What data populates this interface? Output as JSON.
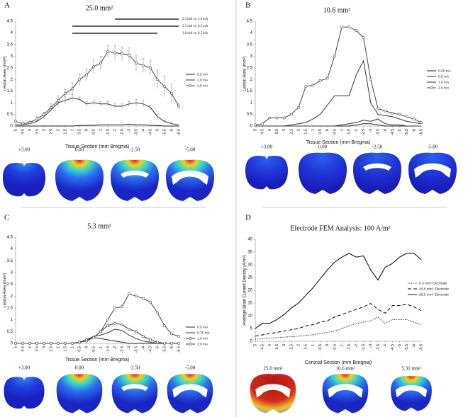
{
  "chart_data": [
    {
      "panel": "A",
      "type": "line",
      "title": "25.0 mm²",
      "xlabel": "Tissue Section (mm Bregma)",
      "ylabel": "Lesion Area (mm²)",
      "x": [
        5,
        4.5,
        4,
        3.5,
        3,
        2.5,
        2,
        1.5,
        1,
        0.5,
        0,
        -0.5,
        -1,
        -1.5,
        -2,
        -2.5,
        -3,
        -3.5,
        -4,
        -4.5,
        -5,
        -5.5,
        -6,
        -6.5
      ],
      "xlim": [
        5,
        -6.5
      ],
      "xticks": [
        5,
        4.5,
        4,
        3.5,
        3,
        2.5,
        2,
        1.5,
        1,
        0.5,
        0,
        -0.5,
        -1,
        -1.5,
        -2,
        -2.5,
        -3,
        -3.5,
        -4,
        -4.5,
        -5,
        -5.5,
        -6,
        -6.5
      ],
      "ylim": [
        0,
        4.5
      ],
      "yticks": [
        0,
        0.5,
        1,
        1.5,
        2,
        2.5,
        3,
        3.5,
        4,
        4.5
      ],
      "series": [
        {
          "name": "0.5 mA",
          "color": "#222222",
          "line_style": "solid",
          "marker": "none",
          "values": [
            0,
            0,
            0,
            0,
            0,
            0,
            0,
            0,
            0,
            0.02,
            0.03,
            0.03,
            0.05,
            0.05,
            0.05,
            0.05,
            0.08,
            0.05,
            0.05,
            0.03,
            0.02,
            0,
            0,
            0
          ]
        },
        {
          "name": "1.0 mA",
          "color": "#333333",
          "line_style": "solid",
          "marker": "none",
          "values": [
            0.05,
            0.05,
            0.1,
            0.2,
            0.4,
            0.7,
            1.0,
            1.1,
            1.2,
            1.15,
            0.95,
            1.0,
            0.95,
            0.95,
            0.85,
            0.85,
            0.95,
            1.0,
            0.95,
            0.8,
            0.4,
            0.2,
            0.1,
            0.05
          ],
          "errors": [
            0,
            0,
            0.05,
            0.05,
            0.1,
            0.1,
            0.15,
            0.15,
            0.15,
            0.1,
            0.1,
            0.1,
            0.1,
            0.1,
            0.1,
            0.1,
            0.1,
            0.15,
            0.15,
            0.1,
            0.1,
            0.05,
            0.05,
            0
          ]
        },
        {
          "name": "2.5 mA",
          "color": "#444444",
          "line_style": "solid",
          "marker": "circle",
          "values": [
            0.2,
            0.1,
            0.15,
            0.3,
            0.5,
            0.8,
            1.1,
            1.4,
            1.6,
            2.0,
            2.2,
            2.55,
            2.7,
            3.2,
            3.15,
            3.1,
            3.05,
            2.7,
            2.6,
            2.5,
            2.0,
            1.7,
            1.4,
            0.85
          ],
          "errors": [
            0.05,
            0.05,
            0.05,
            0.1,
            0.1,
            0.15,
            0.2,
            0.2,
            0.25,
            0.25,
            0.25,
            0.3,
            0.3,
            0.25,
            0.3,
            0.3,
            0.3,
            0.35,
            0.3,
            0.3,
            0.4,
            0.45,
            0.4,
            0.1
          ]
        }
      ],
      "annotations": [
        {
          "label": "2.5 mA vs. 1.0 mA",
          "x": [
            -2,
            -6.5
          ]
        },
        {
          "label": "2.5 mA vs. 0.5 mA",
          "x": [
            1,
            -6.5
          ]
        },
        {
          "label": "1.0 mA vs. 0.5 mA",
          "x": [
            1,
            -5
          ]
        }
      ],
      "image_labels": [
        "+3.00",
        "0.00",
        "-2.50",
        "-5.00"
      ]
    },
    {
      "panel": "B",
      "type": "line",
      "title": "10.6 mm²",
      "xlabel": "Tissue Section (mm Bregma)",
      "ylabel": "Lesion Area (mm²)",
      "x": [
        5,
        4.5,
        4,
        3.5,
        3,
        2.5,
        2,
        1.5,
        1,
        0.5,
        0,
        -0.5,
        -1,
        -1.5,
        -2,
        -2.5,
        -3,
        -3.5,
        -4,
        -4.5,
        -5,
        -5.5,
        -6,
        -6.5
      ],
      "xlim": [
        5,
        -6.5
      ],
      "xticks": [
        5,
        4.5,
        4,
        3.5,
        3,
        2.5,
        2,
        1.5,
        1,
        0.5,
        0,
        -0.5,
        -1,
        -1.5,
        -2,
        -2.5,
        -3,
        -3.5,
        -4,
        -4.5,
        -5,
        -5.5,
        -6,
        -6.5
      ],
      "ylim": [
        0,
        4.5
      ],
      "yticks": [
        0,
        0.5,
        1,
        1.5,
        2,
        2.5,
        3,
        3.5,
        4,
        4.5
      ],
      "series": [
        {
          "name": "0.25 mA",
          "color": "#222222",
          "line_style": "solid",
          "marker": "none",
          "values": [
            0,
            0,
            0,
            0,
            0,
            0,
            0,
            0,
            0,
            0,
            0,
            0,
            0,
            0,
            0.05,
            0.1,
            0.1,
            0.05,
            0,
            0,
            0,
            0,
            0,
            0
          ]
        },
        {
          "name": "0.5 mA",
          "color": "#333333",
          "line_style": "solid",
          "marker": "none",
          "values": [
            0,
            0,
            0,
            0,
            0,
            0,
            0,
            0,
            0,
            0,
            0,
            0,
            0.05,
            0.1,
            0.15,
            0.25,
            0.2,
            0.3,
            0.1,
            0.05,
            0.05,
            0,
            0,
            0
          ]
        },
        {
          "name": "1.0 mA",
          "color": "#333333",
          "line_style": "solid",
          "marker": "none",
          "values": [
            0,
            0,
            0,
            0,
            0,
            0.05,
            0.1,
            0.15,
            0.3,
            0.5,
            0.9,
            1.3,
            1.3,
            1.3,
            2.2,
            2.8,
            1.0,
            0.5,
            0.45,
            0.4,
            0.3,
            0.2,
            0.15,
            0.1
          ]
        },
        {
          "name": "2.0 mA",
          "color": "#444444",
          "line_style": "solid",
          "marker": "circle",
          "values": [
            0.05,
            0.1,
            0.35,
            0.35,
            0.35,
            0.5,
            0.8,
            1.7,
            1.75,
            1.95,
            2.05,
            3.0,
            4.25,
            4.25,
            4.1,
            3.8,
            2.0,
            0.75,
            0.65,
            0.55,
            0.5,
            0.4,
            0.3,
            0.15
          ]
        }
      ],
      "image_labels": [
        "+3.00",
        "0.00",
        "-2.50",
        "-5.00"
      ]
    },
    {
      "panel": "C",
      "type": "line",
      "title": "5.3 mm²",
      "xlabel": "Tissue Section (mm Bregma)",
      "ylabel": "Lesion Area (mm²)",
      "x": [
        5,
        4.5,
        4,
        3.5,
        3,
        2.5,
        2,
        1.5,
        1,
        0.5,
        0,
        -0.5,
        -1,
        -1.5,
        -2,
        -2.5,
        -3,
        -3.5,
        -4,
        -4.5,
        -5,
        -5.5,
        -6,
        -6.5
      ],
      "xlim": [
        5,
        -6.5
      ],
      "xticks": [
        5,
        4.5,
        4,
        3.5,
        3,
        2.5,
        2,
        1.5,
        1,
        0.5,
        0,
        -0.5,
        -1,
        -1.5,
        -2,
        -2.5,
        -3,
        -3.5,
        -4,
        -4.5,
        -5,
        -5.5,
        -6,
        -6.5
      ],
      "ylim": [
        0,
        4.5
      ],
      "yticks": [
        0,
        0.5,
        1,
        1.5,
        2,
        2.5,
        3,
        3.5,
        4,
        4.5
      ],
      "series": [
        {
          "name": "0.5 mA",
          "color": "#222222",
          "line_style": "solid",
          "marker": "none",
          "values": [
            0,
            0,
            0,
            0,
            0,
            0,
            0,
            0,
            0,
            0.05,
            0.15,
            0.25,
            0.2,
            0.15,
            0.1,
            0.05,
            0,
            0,
            0,
            0,
            0,
            0,
            0,
            0
          ]
        },
        {
          "name": "0.75 mA",
          "color": "#333333",
          "line_style": "solid",
          "marker": "none",
          "values": [
            0,
            0,
            0,
            0,
            0,
            0,
            0,
            0,
            0,
            0.05,
            0.15,
            0.3,
            0.35,
            0.45,
            0.6,
            0.55,
            0.35,
            0.2,
            0.1,
            0.05,
            0,
            0,
            0,
            0
          ]
        },
        {
          "name": "1.0 mA",
          "color": "#333333",
          "line_style": "solid",
          "marker": "circle",
          "values": [
            0,
            0,
            0,
            0,
            0,
            0,
            0,
            0,
            0,
            0.05,
            0.1,
            0.25,
            0.5,
            0.75,
            0.85,
            0.8,
            0.6,
            0.5,
            0.3,
            0.15,
            0.05,
            0,
            0,
            0
          ]
        },
        {
          "name": "2.0 mA",
          "color": "#444444",
          "line_style": "solid",
          "marker": "circle",
          "values": [
            0,
            0,
            0,
            0,
            0,
            0,
            0,
            0,
            0,
            0.05,
            0.15,
            0.25,
            0.5,
            1.0,
            1.5,
            1.55,
            2.1,
            2.0,
            1.9,
            1.75,
            1.3,
            0.75,
            0.4,
            0.3
          ]
        }
      ],
      "image_labels": [
        "+3.00",
        "0.00",
        "-2.50",
        "-5.00"
      ]
    },
    {
      "panel": "D",
      "type": "line",
      "title": "Electrode FEM Analysis: 100 A/m²",
      "xlabel": "Coronal Section (mm Bregma)",
      "ylabel": "Average Brain Current Density (A/m²)",
      "x": [
        5,
        4.5,
        4,
        3.5,
        3,
        2.5,
        2,
        1.5,
        1,
        0.5,
        0,
        -0.5,
        -1,
        -1.5,
        -2,
        -2.5,
        -3,
        -3.5,
        -4,
        -4.5,
        -5,
        -5.5,
        -6,
        -6.5
      ],
      "xlim": [
        5,
        -6.5
      ],
      "xticks": [
        5,
        4.5,
        4,
        3.5,
        3,
        2.5,
        2,
        1.5,
        1,
        0.5,
        0,
        -0.5,
        -1,
        -1.5,
        -2,
        -2.5,
        -3,
        -3.5,
        -4,
        -4.5,
        -5,
        -5.5,
        -6,
        -6.5
      ],
      "ylim": [
        0,
        40
      ],
      "yticks": [
        0,
        5,
        10,
        15,
        20,
        25,
        30,
        35,
        40
      ],
      "series": [
        {
          "name": "5.3 mm² Electrode",
          "color": "#000000",
          "line_style": "dotted",
          "marker": "none",
          "values": [
            0.8,
            1,
            1.2,
            1.4,
            1.6,
            1.8,
            2,
            2.3,
            2.5,
            3,
            3.5,
            4,
            5,
            6,
            7,
            7.5,
            8,
            9.5,
            7,
            8.5,
            8.5,
            8.5,
            7.5,
            6.5
          ]
        },
        {
          "name": "10.6 mm² Electrode",
          "color": "#000000",
          "line_style": "dashed",
          "marker": "none",
          "values": [
            2,
            2.5,
            3,
            3.5,
            4,
            4.5,
            5,
            6,
            6.5,
            7.5,
            8,
            9.5,
            10.5,
            11.5,
            12.5,
            13.5,
            14.8,
            12.5,
            11,
            14,
            14,
            14.5,
            13.5,
            12
          ]
        },
        {
          "name": "25.0 mm² Electrode",
          "color": "#000000",
          "line_style": "solid",
          "marker": "none",
          "values": [
            5,
            7,
            7,
            8.5,
            10.5,
            13,
            15,
            18,
            21,
            24.5,
            28,
            31,
            33,
            34.5,
            33,
            33.5,
            28,
            24,
            29,
            30.5,
            33,
            34.5,
            34.5,
            32
          ]
        }
      ],
      "image_labels": [
        "25.0 mm²",
        "10.6 mm²",
        "5.31 mm²"
      ]
    }
  ]
}
